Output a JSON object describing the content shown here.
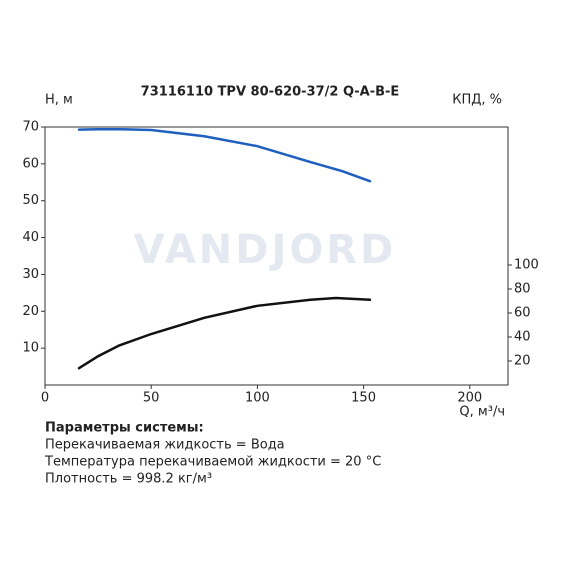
{
  "chart_data": {
    "type": "line",
    "title": "73116110 TPV 80-620-37/2 Q-A-B-E",
    "y_label": "H, м",
    "y2_label": "КПД, %",
    "x_label": "Q, м³/ч",
    "watermark": "VANDJORD",
    "xlim": [
      0,
      218
    ],
    "xticks": [
      0,
      50,
      100,
      150,
      200
    ],
    "ylim": [
      0,
      70
    ],
    "yticks": [
      10,
      20,
      30,
      40,
      50,
      60,
      70
    ],
    "y2lim": [
      0,
      215
    ],
    "y2ticks": [
      20,
      40,
      60,
      80,
      100
    ],
    "series": [
      {
        "color": "#1f5fbf",
        "axis": "y",
        "x": [
          16,
          25,
          35,
          50,
          75,
          100,
          125,
          140,
          153
        ],
        "values": [
          69.3,
          69.4,
          69.4,
          69.2,
          67.5,
          64.8,
          60.5,
          58.0,
          55.3
        ]
      },
      {
        "color": "#111111",
        "axis": "y2",
        "x": [
          16,
          25,
          35,
          50,
          75,
          100,
          125,
          137,
          153
        ],
        "values": [
          14,
          24,
          33,
          42.5,
          56,
          66,
          71,
          72.5,
          71
        ]
      }
    ]
  },
  "notes": [
    "Параметры системы:",
    "Перекачиваемая жидкость = Вода",
    "Температура перекачиваемой жидкости = 20 °C",
    "Плотность = 998.2 кг/м³"
  ]
}
